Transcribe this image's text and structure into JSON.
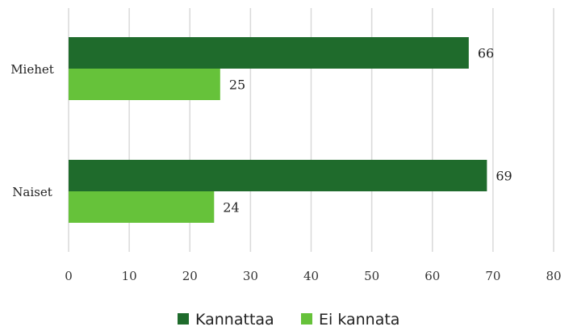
{
  "chart_data": {
    "type": "bar",
    "orientation": "horizontal",
    "categories": [
      "Miehet",
      "Naiset"
    ],
    "series": [
      {
        "name": "Kannattaa",
        "values": [
          66,
          69
        ],
        "color": "#1f6b2c"
      },
      {
        "name": "Ei kannata",
        "values": [
          25,
          24
        ],
        "color": "#66c23a"
      }
    ],
    "xlim": [
      0,
      80
    ],
    "xticks": [
      "0",
      "10",
      "20",
      "30",
      "40",
      "50",
      "60",
      "70",
      "80"
    ],
    "grid": true,
    "legend_position": "bottom"
  }
}
